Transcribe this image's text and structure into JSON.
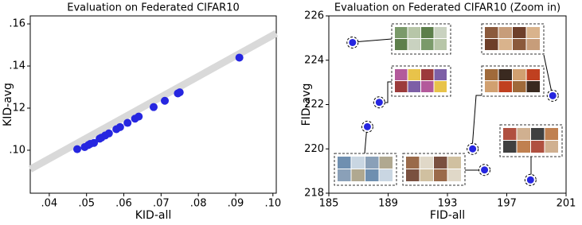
{
  "chart_data": [
    {
      "type": "scatter",
      "title": "Evaluation on Federated CIFAR10",
      "x_label": "KID-all",
      "y_label": "KID-avg",
      "xlim": [
        0.0349,
        0.1009
      ],
      "ylim": [
        0.0796,
        0.1638
      ],
      "xticks": [
        {
          "value": 0.04,
          "label": ".04"
        },
        {
          "value": 0.05,
          "label": ".05"
        },
        {
          "value": 0.06,
          "label": ".06"
        },
        {
          "value": 0.07,
          "label": ".07"
        },
        {
          "value": 0.08,
          "label": ".08"
        },
        {
          "value": 0.09,
          "label": ".09"
        },
        {
          "value": 0.1,
          "label": ".10"
        }
      ],
      "yticks": [
        {
          "value": 0.1,
          "label": ".10"
        },
        {
          "value": 0.12,
          "label": ".12"
        },
        {
          "value": 0.14,
          "label": ".14"
        },
        {
          "value": 0.16,
          "label": ".16"
        }
      ],
      "series": [
        {
          "style": "line",
          "color": "#d9d9d9",
          "x": [
            0.0349,
            0.1009
          ],
          "values": [
            0.091,
            0.1555
          ]
        },
        {
          "style": "dot",
          "color": "#2626e0",
          "x": [
            0.0475,
            0.0495,
            0.0505,
            0.051,
            0.052,
            0.0535,
            0.054,
            0.055,
            0.056,
            0.058,
            0.059,
            0.061,
            0.063,
            0.064,
            0.068,
            0.071,
            0.0745,
            0.075,
            0.091
          ],
          "values": [
            0.1005,
            0.1015,
            0.1025,
            0.103,
            0.1035,
            0.1055,
            0.106,
            0.107,
            0.108,
            0.11,
            0.111,
            0.113,
            0.115,
            0.116,
            0.1205,
            0.1235,
            0.127,
            0.1275,
            0.144
          ]
        }
      ]
    },
    {
      "type": "scatter",
      "title": "Evaluation on Federated CIFAR10 (Zoom in)",
      "x_label": "FID-all",
      "y_label": "FID-avg",
      "xlim": [
        185,
        201
      ],
      "ylim": [
        218,
        226
      ],
      "xticks": [
        185,
        189,
        193,
        197,
        201
      ],
      "yticks": [
        218,
        220,
        222,
        224,
        226
      ],
      "series": [
        {
          "style": "dashed-dot",
          "color": "#2626e0",
          "x": [
            186.6,
            188.4,
            187.6,
            194.7,
            195.5,
            198.6,
            200.1
          ],
          "values": [
            224.8,
            222.1,
            221.0,
            220.0,
            219.05,
            218.6,
            222.4
          ]
        }
      ]
    }
  ]
}
